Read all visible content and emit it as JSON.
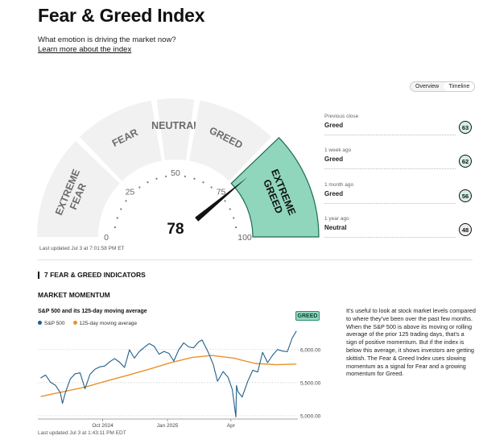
{
  "header": {
    "title": "Fear & Greed Index",
    "subtitle": "What emotion is driving the market now?",
    "learn_more": "Learn more about the index"
  },
  "view_toggle": {
    "tabs": [
      "Overview",
      "Timeline"
    ],
    "active": "Timeline"
  },
  "gauge": {
    "value": 78,
    "value_text": "78",
    "min": 0,
    "max": 100,
    "ticks": [
      "0",
      "25",
      "50",
      "75",
      "100"
    ],
    "segments": [
      {
        "label_lines": [
          "EXTREME",
          "FEAR"
        ],
        "from": 0,
        "to": 25
      },
      {
        "label_lines": [
          "FEAR"
        ],
        "from": 25,
        "to": 45
      },
      {
        "label_lines": [
          "NEUTRAL"
        ],
        "from": 45,
        "to": 55
      },
      {
        "label_lines": [
          "GREED"
        ],
        "from": 55,
        "to": 75
      },
      {
        "label_lines": [
          "EXTREME",
          "GREED"
        ],
        "from": 75,
        "to": 100
      }
    ],
    "active_segment": 4,
    "colors": {
      "segment": "#f1f1f1",
      "active": "#8fd6bd",
      "active_border": "#1f6b50",
      "label": "#6b6b6b",
      "active_label": "#111111"
    },
    "last_updated": "Last updated Jul 3 at 7:01:58 PM ET"
  },
  "history": [
    {
      "label": "Previous close",
      "sentiment": "Greed",
      "value": "63",
      "color": "#d6f0e6"
    },
    {
      "label": "1 week ago",
      "sentiment": "Greed",
      "value": "62",
      "color": "#d6f0e6"
    },
    {
      "label": "1 month ago",
      "sentiment": "Greed",
      "value": "56",
      "color": "#d6f0e6"
    },
    {
      "label": "1 year ago",
      "sentiment": "Neutral",
      "value": "48",
      "color": "#eeeeee"
    }
  ],
  "indicators": {
    "heading": "7 FEAR & GREED INDICATORS",
    "section": "MARKET MOMENTUM",
    "chart_title": "S&P 500 and its 125-day moving average",
    "badge": "GREED",
    "description": "It’s useful to look at stock market levels compared to where they’ve been over the past few months. When the S&P 500 is above its moving or rolling average of the prior 125 trading days, that’s a sign of positive momentum. But if the index is below this average, it shows investors are getting skittish. The Fear & Greed Index uses slowing momentum as a signal for Fear and a growing momentum for Greed.",
    "last_updated": "Last updated Jul 3 at 1:43:11 PM EDT"
  },
  "chart_data": {
    "type": "line",
    "series": [
      {
        "name": "S&P 500",
        "color": "#1f5f8b",
        "x": [
          "2024-07-05",
          "2024-07-12",
          "2024-07-19",
          "2024-07-26",
          "2024-08-02",
          "2024-08-05",
          "2024-08-09",
          "2024-08-16",
          "2024-08-23",
          "2024-08-30",
          "2024-09-06",
          "2024-09-13",
          "2024-09-20",
          "2024-09-27",
          "2024-10-04",
          "2024-10-11",
          "2024-10-18",
          "2024-10-25",
          "2024-11-01",
          "2024-11-08",
          "2024-11-15",
          "2024-11-22",
          "2024-11-29",
          "2024-12-06",
          "2024-12-13",
          "2024-12-20",
          "2024-12-27",
          "2025-01-03",
          "2025-01-10",
          "2025-01-17",
          "2025-01-24",
          "2025-01-31",
          "2025-02-07",
          "2025-02-14",
          "2025-02-19",
          "2025-02-28",
          "2025-03-07",
          "2025-03-13",
          "2025-03-21",
          "2025-03-28",
          "2025-04-03",
          "2025-04-08",
          "2025-04-09",
          "2025-04-11",
          "2025-04-17",
          "2025-04-25",
          "2025-05-02",
          "2025-05-09",
          "2025-05-16",
          "2025-05-23",
          "2025-05-30",
          "2025-06-06",
          "2025-06-13",
          "2025-06-20",
          "2025-06-27",
          "2025-07-03"
        ],
        "y": [
          5570,
          5615,
          5505,
          5460,
          5346,
          5186,
          5344,
          5555,
          5634,
          5648,
          5408,
          5626,
          5702,
          5738,
          5751,
          5815,
          5864,
          5808,
          5729,
          5995,
          5870,
          5969,
          6032,
          6090,
          6051,
          5930,
          5971,
          5942,
          5827,
          5997,
          6101,
          6040,
          6026,
          6114,
          6144,
          5955,
          5770,
          5521,
          5667,
          5581,
          5396,
          4982,
          5456,
          5363,
          5282,
          5525,
          5686,
          5660,
          5958,
          5802,
          5912,
          6000,
          5977,
          5967,
          6173,
          6279
        ]
      },
      {
        "name": "125-day moving average",
        "color": "#e8912d",
        "x": [
          "2024-07-05",
          "2024-08-05",
          "2024-09-05",
          "2024-10-05",
          "2024-11-05",
          "2024-12-05",
          "2025-01-05",
          "2025-02-05",
          "2025-03-05",
          "2025-04-05",
          "2025-05-05",
          "2025-06-05",
          "2025-07-03"
        ],
        "y": [
          5290,
          5360,
          5430,
          5520,
          5610,
          5700,
          5800,
          5880,
          5910,
          5870,
          5790,
          5770,
          5780
        ]
      }
    ],
    "x_ticks": [
      "Oct 2024",
      "Jan 2025",
      "Apr"
    ],
    "x_tick_dates": [
      "2024-10-01",
      "2025-01-01",
      "2025-04-01"
    ],
    "y_ticks": [
      "6,000.00",
      "5,500.00",
      "5,000.00"
    ],
    "y_tick_values": [
      6000,
      5500,
      5000
    ],
    "xlim": [
      "2024-07-01",
      "2025-07-05"
    ],
    "ylim": [
      4950,
      6350
    ],
    "grid": "horizontal dotted",
    "legend": "top-left"
  }
}
